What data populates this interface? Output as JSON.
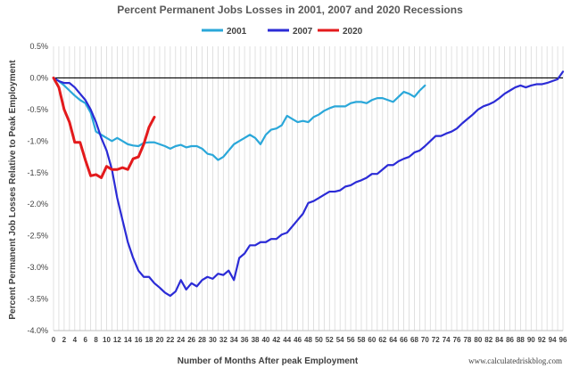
{
  "chart_data": {
    "type": "line",
    "title": "Percent Permanent Jobs Losses in 2001, 2007 and 2020 Recessions",
    "xlabel": "Number of Months After peak Employment",
    "ylabel": "Percent Permanent Job Losses Relative to Peak Employment",
    "source": "www.calculatedriskblog.com",
    "xlim": [
      0,
      96
    ],
    "ylim": [
      -4.0,
      0.5
    ],
    "x_ticks": [
      0,
      2,
      4,
      6,
      8,
      10,
      12,
      14,
      16,
      18,
      20,
      22,
      24,
      26,
      28,
      30,
      32,
      34,
      36,
      38,
      40,
      42,
      44,
      46,
      48,
      50,
      52,
      54,
      56,
      58,
      60,
      62,
      64,
      66,
      68,
      70,
      72,
      74,
      76,
      78,
      80,
      82,
      84,
      86,
      88,
      90,
      92,
      94,
      96
    ],
    "y_ticks": [
      {
        "value": 0.5,
        "label": "0.5%"
      },
      {
        "value": 0.0,
        "label": "0.0%"
      },
      {
        "value": -0.5,
        "label": "-0.5%"
      },
      {
        "value": -1.0,
        "label": "-1.0%"
      },
      {
        "value": -1.5,
        "label": "-1.5%"
      },
      {
        "value": -2.0,
        "label": "-2.0%"
      },
      {
        "value": -2.5,
        "label": "-2.5%"
      },
      {
        "value": -3.0,
        "label": "-3.0%"
      },
      {
        "value": -3.5,
        "label": "-3.5%"
      },
      {
        "value": -4.0,
        "label": "-4.0%"
      }
    ],
    "grid": "vertical",
    "legend": "top-center",
    "series": [
      {
        "name": "2001",
        "color": "#2aa7d9",
        "values": [
          0.0,
          -0.05,
          -0.12,
          -0.2,
          -0.28,
          -0.35,
          -0.4,
          -0.55,
          -0.85,
          -0.9,
          -0.95,
          -1.0,
          -0.95,
          -1.0,
          -1.05,
          -1.07,
          -1.08,
          -1.03,
          -1.02,
          -1.02,
          -1.05,
          -1.08,
          -1.12,
          -1.08,
          -1.06,
          -1.1,
          -1.08,
          -1.08,
          -1.12,
          -1.2,
          -1.22,
          -1.3,
          -1.25,
          -1.15,
          -1.05,
          -1.0,
          -0.95,
          -0.9,
          -0.95,
          -1.05,
          -0.9,
          -0.82,
          -0.8,
          -0.75,
          -0.6,
          -0.65,
          -0.7,
          -0.68,
          -0.7,
          -0.62,
          -0.58,
          -0.52,
          -0.48,
          -0.45,
          -0.45,
          -0.45,
          -0.4,
          -0.38,
          -0.38,
          -0.4,
          -0.35,
          -0.32,
          -0.32,
          -0.35,
          -0.38,
          -0.3,
          -0.22,
          -0.25,
          -0.3,
          -0.2,
          -0.12
        ]
      },
      {
        "name": "2007",
        "color": "#2b2bd6",
        "values": [
          0.0,
          -0.05,
          -0.08,
          -0.08,
          -0.15,
          -0.25,
          -0.35,
          -0.5,
          -0.7,
          -0.95,
          -1.15,
          -1.45,
          -1.9,
          -2.25,
          -2.6,
          -2.85,
          -3.05,
          -3.15,
          -3.15,
          -3.25,
          -3.32,
          -3.4,
          -3.45,
          -3.38,
          -3.2,
          -3.35,
          -3.25,
          -3.3,
          -3.2,
          -3.15,
          -3.18,
          -3.1,
          -3.12,
          -3.05,
          -3.2,
          -2.85,
          -2.78,
          -2.65,
          -2.65,
          -2.6,
          -2.6,
          -2.55,
          -2.55,
          -2.48,
          -2.45,
          -2.35,
          -2.25,
          -2.15,
          -1.98,
          -1.95,
          -1.9,
          -1.85,
          -1.8,
          -1.8,
          -1.78,
          -1.72,
          -1.7,
          -1.65,
          -1.62,
          -1.58,
          -1.52,
          -1.52,
          -1.45,
          -1.38,
          -1.38,
          -1.32,
          -1.28,
          -1.25,
          -1.18,
          -1.15,
          -1.08,
          -1.0,
          -0.92,
          -0.92,
          -0.88,
          -0.85,
          -0.8,
          -0.72,
          -0.65,
          -0.58,
          -0.5,
          -0.45,
          -0.42,
          -0.38,
          -0.32,
          -0.25,
          -0.2,
          -0.15,
          -0.12,
          -0.15,
          -0.12,
          -0.1,
          -0.1,
          -0.08,
          -0.05,
          -0.02,
          0.1
        ]
      },
      {
        "name": "2020",
        "color": "#e31a1c",
        "values": [
          0.0,
          -0.15,
          -0.5,
          -0.7,
          -1.02,
          -1.02,
          -1.3,
          -1.55,
          -1.53,
          -1.58,
          -1.4,
          -1.45,
          -1.45,
          -1.42,
          -1.45,
          -1.28,
          -1.25,
          -1.05,
          -0.78,
          -0.62
        ]
      }
    ]
  }
}
